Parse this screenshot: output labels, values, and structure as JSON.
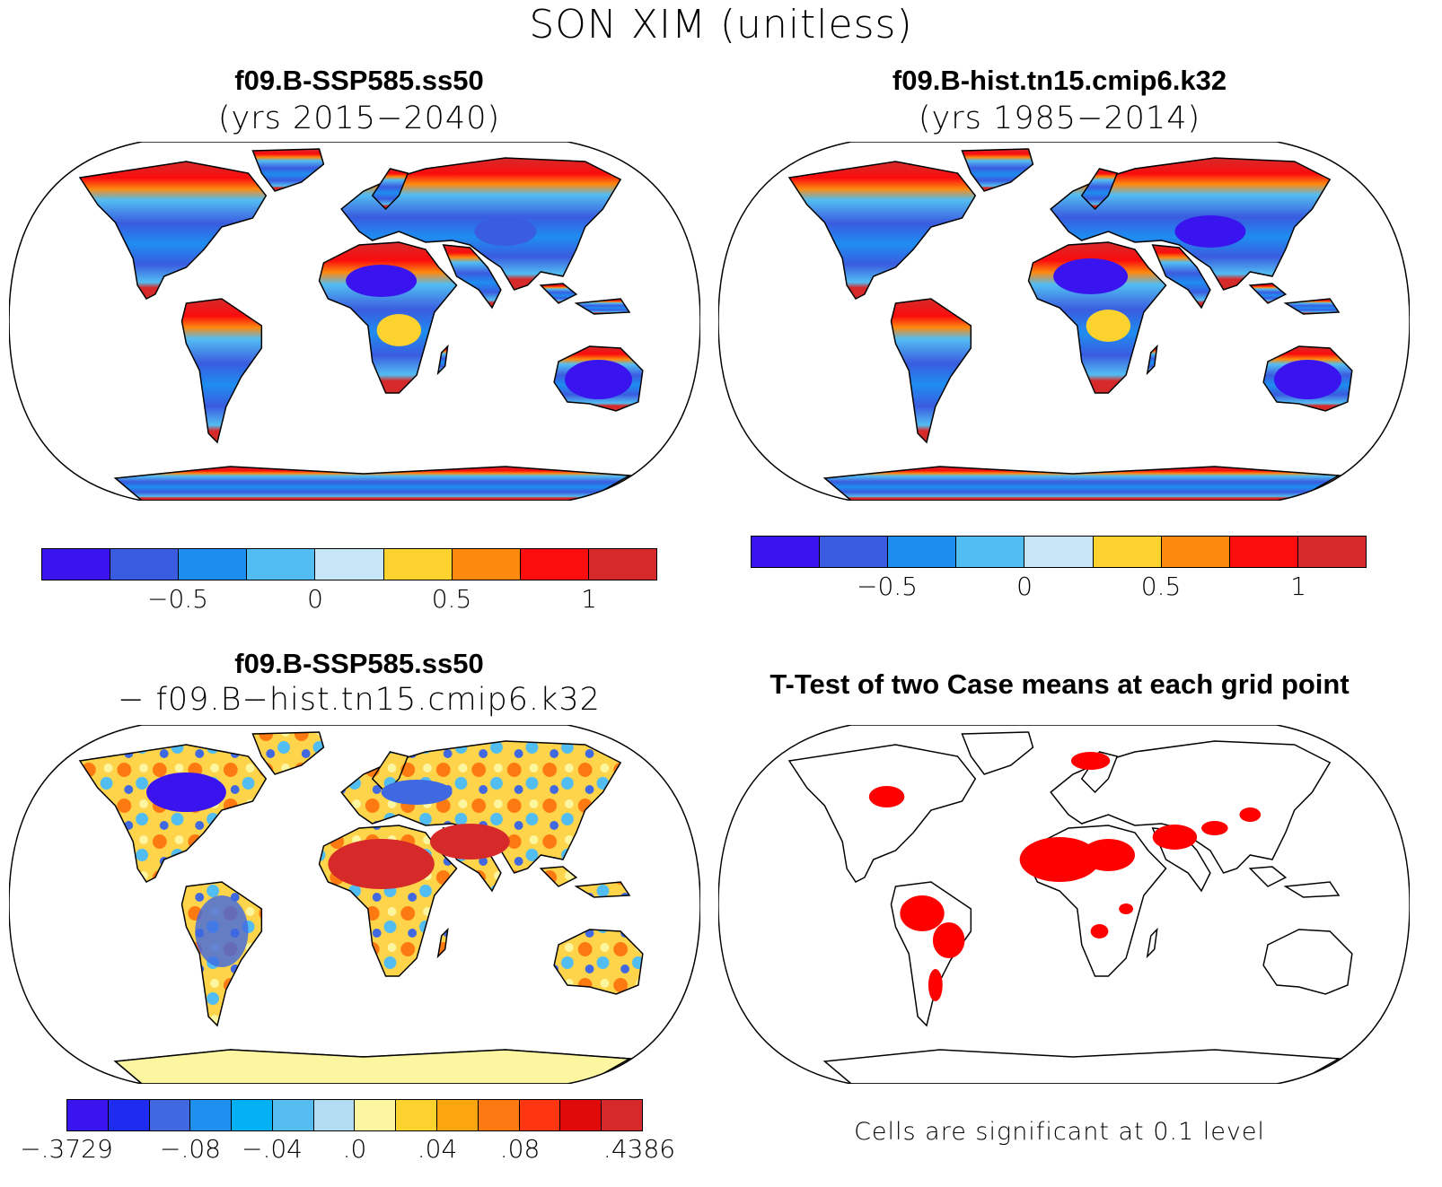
{
  "title": "SON XIM (unitless)",
  "panels": [
    {
      "id": "future",
      "title": "f09.B-SSP585.ss50",
      "subtitle": "(yrs 2015−2040)"
    },
    {
      "id": "hist",
      "title": "f09.B-hist.tn15.cmip6.k32",
      "subtitle": "(yrs 1985−2014)"
    },
    {
      "id": "diff",
      "title": "f09.B-SSP585.ss50",
      "subtitle": "− f09.B−hist.tn15.cmip6.k32"
    },
    {
      "id": "ttest",
      "title": "T-Test of two Case means at each grid point",
      "footnote": "Cells are significant at 0.1 level"
    }
  ],
  "colorbars": {
    "main": {
      "colors": [
        "#3a14ef",
        "#3a5ce0",
        "#1e8df0",
        "#52bdf2",
        "#c6e6f5",
        "#fcd22e",
        "#fd8a0f",
        "#fb0c0d",
        "#d62a2a"
      ],
      "ticks": [
        "−0.5",
        "0",
        "0.5",
        "1"
      ]
    },
    "diff": {
      "colors": [
        "#3a14ef",
        "#1e2cf0",
        "#3f68e1",
        "#1f8ff0",
        "#05b1f5",
        "#55bdf0",
        "#b2dcf2",
        "#fdf6a0",
        "#fcd22e",
        "#fca60f",
        "#fd7a12",
        "#fd3510",
        "#e00a0a",
        "#d62a2a"
      ],
      "ticks": [
        "−.3729",
        "−.08",
        "−.04",
        ".0",
        ".04",
        ".08",
        ".4386"
      ]
    }
  },
  "colors": {
    "ocean": "#ffffff",
    "significant": "#ff0000"
  }
}
